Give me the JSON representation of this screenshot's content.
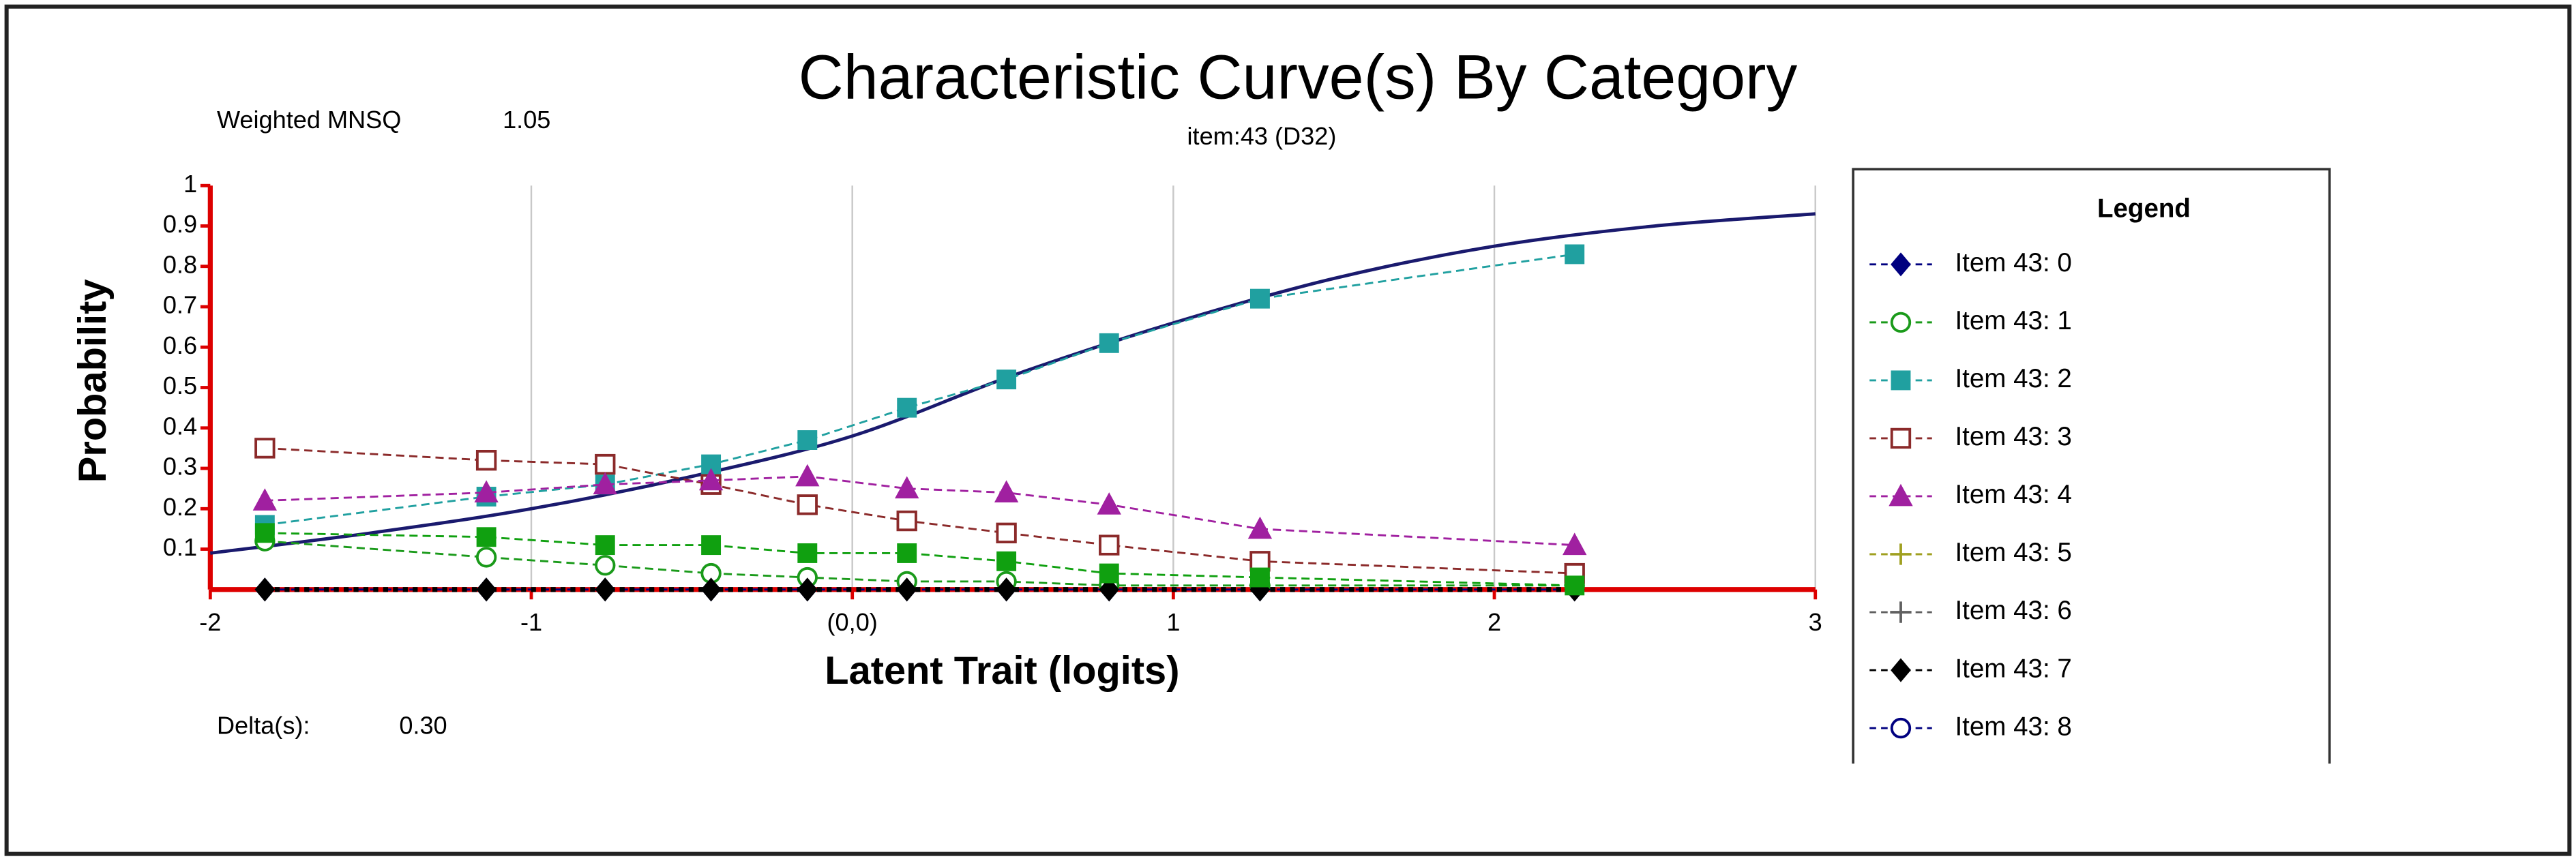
{
  "chart_data": {
    "type": "line",
    "title": "Characteristic Curve(s) By Category",
    "subtitle": "item:43 (D32)",
    "stats": {
      "mnsq_label": "Weighted MNSQ",
      "mnsq_value": "1.05",
      "delta_label": "Delta(s):",
      "delta_value": "0.30"
    },
    "x_label": "Latent Trait (logits)",
    "y_label": "Probability",
    "legend_title": "Legend",
    "xlim": [
      -2,
      3
    ],
    "ylim": [
      0,
      1
    ],
    "xticks": [
      -2,
      -1,
      {
        "value": 0,
        "label": "(0,0)"
      },
      1,
      2,
      3
    ],
    "yticks": [
      0.1,
      0.2,
      0.3,
      0.4,
      0.5,
      0.6,
      0.7,
      0.8,
      0.9,
      1
    ],
    "grid": true,
    "x": [
      -1.83,
      -1.14,
      -0.77,
      -0.44,
      -0.14,
      0.17,
      0.48,
      0.8,
      1.27,
      2.25
    ],
    "series": [
      {
        "name": "Item 43: 0",
        "color": "#000080",
        "marker": "diamond",
        "values": [
          0,
          0,
          0,
          0,
          0,
          0,
          0,
          0,
          0,
          0
        ]
      },
      {
        "name": "Item 43: 1",
        "color": "#1a9a1a",
        "marker": "open-circle",
        "values": [
          0.12,
          0.08,
          0.06,
          0.04,
          0.03,
          0.02,
          0.02,
          0.01,
          0.01,
          0.01
        ]
      },
      {
        "name": "Item 43: 2",
        "color": "#20a0a0",
        "marker": "square",
        "values": [
          0.16,
          0.23,
          0.26,
          0.31,
          0.37,
          0.45,
          0.52,
          0.61,
          0.72,
          0.83
        ]
      },
      {
        "name": "Item 43: 3",
        "color": "#8b2a2a",
        "marker": "open-square",
        "values": [
          0.35,
          0.32,
          0.31,
          0.26,
          0.21,
          0.17,
          0.14,
          0.11,
          0.07,
          0.04
        ]
      },
      {
        "name": "Item 43: 4",
        "color": "#a020a0",
        "marker": "triangle",
        "values": [
          0.22,
          0.24,
          0.26,
          0.27,
          0.28,
          0.25,
          0.24,
          0.21,
          0.15,
          0.11
        ]
      },
      {
        "name": "Item 43: 5",
        "color": "#a0a020",
        "marker": "plus",
        "values": [
          null,
          null,
          null,
          null,
          null,
          null,
          null,
          null,
          null,
          null
        ]
      },
      {
        "name": "Item 43: 6",
        "color": "#606060",
        "marker": "plus",
        "values": [
          null,
          null,
          null,
          null,
          null,
          null,
          null,
          null,
          null,
          null
        ]
      },
      {
        "name": "Item 43: 7",
        "color": "#000000",
        "marker": "diamond",
        "values": [
          0,
          0,
          0,
          0,
          0,
          0,
          0,
          0,
          0,
          0
        ]
      },
      {
        "name": "Item 43: 8",
        "color": "#000080",
        "marker": "open-circle",
        "values": [
          null,
          null,
          null,
          null,
          null,
          null,
          null,
          null,
          null,
          null
        ]
      },
      {
        "color": "#10a010",
        "marker": "square",
        "values": [
          0.14,
          0.13,
          0.11,
          0.11,
          0.09,
          0.09,
          0.07,
          0.04,
          0.03,
          0.01
        ]
      }
    ],
    "curve": {
      "color": "#1a1a6e",
      "x": [
        -2,
        -1.5,
        -1,
        -0.5,
        0,
        0.5,
        1,
        1.5,
        2,
        2.5,
        3
      ],
      "values": [
        0.09,
        0.14,
        0.2,
        0.28,
        0.38,
        0.53,
        0.66,
        0.77,
        0.85,
        0.9,
        0.93
      ]
    }
  }
}
